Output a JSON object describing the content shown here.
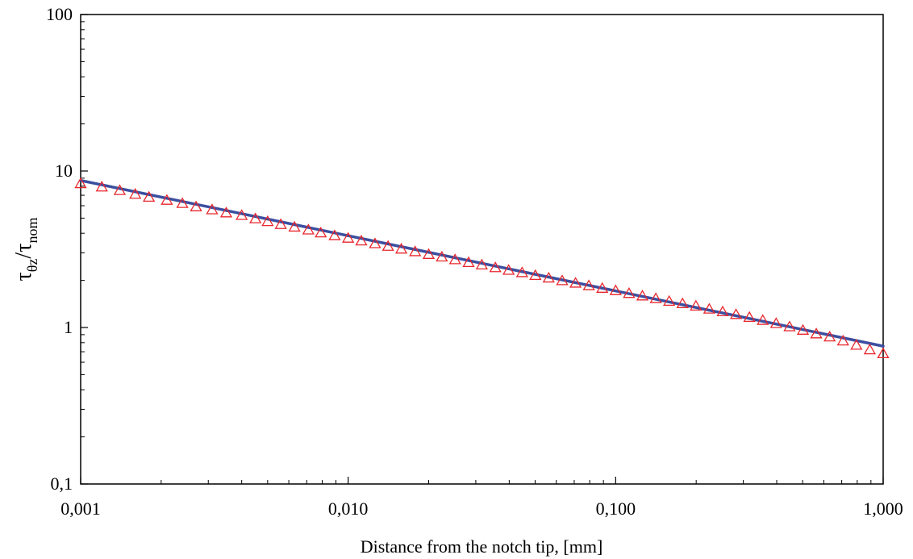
{
  "chart_data": {
    "type": "scatter",
    "xscale": "log",
    "yscale": "log",
    "xlim": [
      0.001,
      1.0
    ],
    "ylim": [
      0.1,
      100
    ],
    "xlabel": "Distance from the notch tip, [mm]",
    "ylabel": {
      "main1": "τ",
      "sub1": "θz",
      "slash": "/",
      "main2": "τ",
      "sub2": "nom"
    },
    "x_ticks": [
      {
        "value": 0.001,
        "label": "0,001"
      },
      {
        "value": 0.01,
        "label": "0,010"
      },
      {
        "value": 0.1,
        "label": "0,100"
      },
      {
        "value": 1.0,
        "label": "1,000"
      }
    ],
    "y_ticks": [
      {
        "value": 0.1,
        "label": "0,1"
      },
      {
        "value": 1,
        "label": "1"
      },
      {
        "value": 10,
        "label": "10"
      },
      {
        "value": 100,
        "label": "100"
      }
    ],
    "grid": false,
    "series": [
      {
        "kind": "markers",
        "marker": "open-triangle",
        "color": "#e8262d",
        "x": [
          0.001,
          0.0012,
          0.0014,
          0.0016,
          0.0018,
          0.0021,
          0.0024,
          0.0027,
          0.0031,
          0.0035,
          0.004,
          0.0045,
          0.005,
          0.0056,
          0.0063,
          0.0071,
          0.0079,
          0.0089,
          0.01,
          0.0112,
          0.0126,
          0.0141,
          0.0158,
          0.0178,
          0.02,
          0.0224,
          0.0251,
          0.0282,
          0.0316,
          0.0355,
          0.0398,
          0.0447,
          0.0501,
          0.0562,
          0.0631,
          0.0708,
          0.0794,
          0.0891,
          0.1,
          0.1122,
          0.1259,
          0.1413,
          0.1585,
          0.1778,
          0.1995,
          0.2239,
          0.2512,
          0.2818,
          0.3162,
          0.3548,
          0.3981,
          0.4467,
          0.5012,
          0.5623,
          0.631,
          0.7079,
          0.7943,
          0.8913,
          1.0
        ],
        "y": [
          8.3,
          7.9,
          7.5,
          7.1,
          6.8,
          6.5,
          6.2,
          5.9,
          5.65,
          5.4,
          5.2,
          4.95,
          4.75,
          4.55,
          4.38,
          4.2,
          4.02,
          3.86,
          3.72,
          3.57,
          3.43,
          3.3,
          3.17,
          3.05,
          2.93,
          2.82,
          2.71,
          2.6,
          2.51,
          2.41,
          2.32,
          2.24,
          2.15,
          2.07,
          1.99,
          1.92,
          1.85,
          1.78,
          1.72,
          1.65,
          1.59,
          1.53,
          1.47,
          1.42,
          1.37,
          1.31,
          1.26,
          1.21,
          1.16,
          1.11,
          1.06,
          1.01,
          0.96,
          0.91,
          0.87,
          0.82,
          0.77,
          0.72,
          0.68
        ]
      },
      {
        "kind": "line",
        "color": "#3b4fa0",
        "x": [
          0.001,
          1.0
        ],
        "y": [
          8.7,
          0.76
        ]
      }
    ]
  }
}
